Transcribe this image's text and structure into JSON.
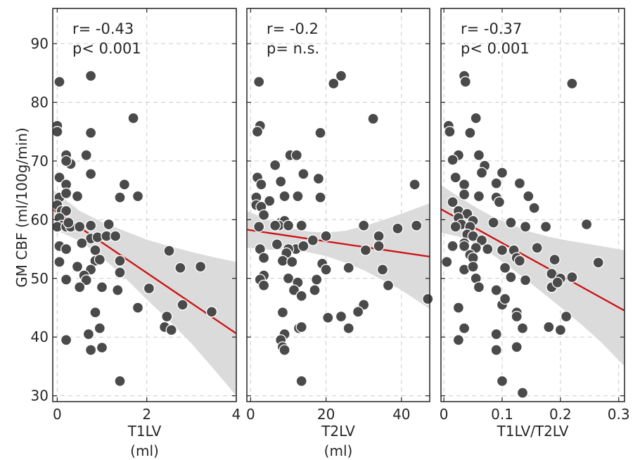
{
  "ylabel": "GM CBF (ml/100g/min)",
  "colors": {
    "points": "#4a4a4a",
    "point_stroke": "#ffffff",
    "fit_line": "#cc1111",
    "ci_band": "#d9d9d9",
    "grid": "#cccccc",
    "frame": "#222222"
  },
  "chart_data": [
    {
      "type": "scatter",
      "xlabel": "T1LV",
      "xunit": "(ml)",
      "annotation": [
        "r= -0.43",
        "p< 0.001"
      ],
      "xlim": [
        -0.1,
        4.0
      ],
      "ylim": [
        29,
        96
      ],
      "xticks": [
        0,
        2,
        4
      ],
      "xtick_labels": [
        "0",
        "2",
        "4"
      ],
      "yticks": [
        30,
        40,
        50,
        60,
        70,
        80,
        90
      ],
      "ytick_labels": [
        "30",
        "40",
        "50",
        "60",
        "70",
        "80",
        "90"
      ],
      "grid": true,
      "fit": {
        "x": [
          -0.1,
          4.0
        ],
        "y": [
          61.8,
          40.6
        ]
      },
      "ci": {
        "x": [
          -0.1,
          0.5,
          1.0,
          1.5,
          2.0,
          2.5,
          3.0,
          3.5,
          4.0
        ],
        "upper": [
          65.1,
          61.5,
          59.6,
          58.1,
          56.6,
          55.5,
          54.5,
          53.6,
          52.8
        ],
        "lower": [
          58.5,
          56.4,
          53.6,
          50.2,
          46.4,
          42.8,
          38.9,
          34.5,
          30.0
        ]
      },
      "points": [
        [
          0.05,
          83.5
        ],
        [
          0.75,
          84.5
        ],
        [
          1.7,
          77.3
        ],
        [
          0.0,
          76.0
        ],
        [
          0.0,
          75.0
        ],
        [
          0.75,
          74.8
        ],
        [
          0.2,
          71.0
        ],
        [
          0.65,
          71.0
        ],
        [
          0.3,
          69.5
        ],
        [
          0.2,
          70.0
        ],
        [
          0.05,
          67.2
        ],
        [
          0.75,
          67.8
        ],
        [
          0.2,
          66.0
        ],
        [
          1.5,
          66.0
        ],
        [
          0.05,
          63.8
        ],
        [
          0.2,
          64.5
        ],
        [
          0.45,
          64.0
        ],
        [
          1.4,
          63.8
        ],
        [
          1.8,
          64.0
        ],
        [
          0.0,
          62.5
        ],
        [
          0.1,
          61.5
        ],
        [
          0.2,
          61.5
        ],
        [
          0.05,
          60.3
        ],
        [
          0.1,
          59.0
        ],
        [
          0.0,
          58.8
        ],
        [
          0.2,
          58.8
        ],
        [
          0.3,
          58.8
        ],
        [
          0.25,
          59.5
        ],
        [
          0.5,
          58.8
        ],
        [
          0.75,
          59.0
        ],
        [
          1.15,
          59.2
        ],
        [
          0.75,
          56.8
        ],
        [
          0.9,
          57.0
        ],
        [
          1.1,
          57.2
        ],
        [
          1.3,
          57.2
        ],
        [
          0.05,
          55.5
        ],
        [
          0.2,
          55.0
        ],
        [
          0.55,
          56.0
        ],
        [
          0.85,
          54.8
        ],
        [
          0.85,
          53.0
        ],
        [
          0.95,
          53.2
        ],
        [
          1.4,
          53.0
        ],
        [
          2.5,
          54.7
        ],
        [
          0.05,
          52.8
        ],
        [
          0.45,
          52.0
        ],
        [
          0.75,
          51.5
        ],
        [
          1.4,
          51.0
        ],
        [
          0.6,
          50.5
        ],
        [
          0.65,
          49.7
        ],
        [
          0.2,
          49.8
        ],
        [
          0.5,
          48.5
        ],
        [
          1.0,
          48.5
        ],
        [
          1.35,
          48.0
        ],
        [
          2.05,
          48.3
        ],
        [
          2.75,
          51.8
        ],
        [
          3.2,
          52.0
        ],
        [
          1.8,
          45.0
        ],
        [
          2.45,
          43.5
        ],
        [
          2.8,
          45.5
        ],
        [
          3.45,
          44.3
        ],
        [
          0.85,
          44.2
        ],
        [
          2.4,
          41.7
        ],
        [
          2.55,
          41.2
        ],
        [
          0.95,
          41.5
        ],
        [
          0.7,
          40.5
        ],
        [
          0.2,
          39.5
        ],
        [
          0.75,
          37.8
        ],
        [
          1.0,
          38.2
        ],
        [
          1.4,
          32.5
        ]
      ]
    },
    {
      "type": "scatter",
      "xlabel": "T2LV",
      "xunit": "(ml)",
      "annotation": [
        "r= -0.2",
        "p= n.s."
      ],
      "xlim": [
        -1.0,
        47.5
      ],
      "ylim": [
        29,
        96
      ],
      "xticks": [
        0,
        20,
        40
      ],
      "xtick_labels": [
        "0",
        "20",
        "40"
      ],
      "yticks": [
        30,
        40,
        50,
        60,
        70,
        80,
        90
      ],
      "ytick_labels": [],
      "grid": true,
      "fit": {
        "x": [
          -1.0,
          47.5
        ],
        "y": [
          58.3,
          53.7
        ]
      },
      "ci": {
        "x": [
          -1.0,
          5,
          10,
          15,
          20,
          25,
          30,
          35,
          40,
          47.5
        ],
        "upper": [
          61.5,
          59.9,
          58.7,
          58.0,
          57.8,
          58.1,
          58.9,
          59.9,
          61.0,
          62.8
        ],
        "lower": [
          55.2,
          54.9,
          54.8,
          54.5,
          53.8,
          52.7,
          51.4,
          49.7,
          48.0,
          44.8
        ]
      },
      "points": [
        [
          2.2,
          83.5
        ],
        [
          24.0,
          84.5
        ],
        [
          22.0,
          83.2
        ],
        [
          2.5,
          76.0
        ],
        [
          1.8,
          75.0
        ],
        [
          18.5,
          74.8
        ],
        [
          32.5,
          77.2
        ],
        [
          10.5,
          71.0
        ],
        [
          12.2,
          71.0
        ],
        [
          6.5,
          69.3
        ],
        [
          8.0,
          66.5
        ],
        [
          18.0,
          67.0
        ],
        [
          14.0,
          67.8
        ],
        [
          1.8,
          67.2
        ],
        [
          2.8,
          66.0
        ],
        [
          43.5,
          66.0
        ],
        [
          1.5,
          63.8
        ],
        [
          5.0,
          63.2
        ],
        [
          9.0,
          64.0
        ],
        [
          12.5,
          64.0
        ],
        [
          18.5,
          63.8
        ],
        [
          1.5,
          62.5
        ],
        [
          2.8,
          62.2
        ],
        [
          3.5,
          60.8
        ],
        [
          8.0,
          59.5
        ],
        [
          9.0,
          59.8
        ],
        [
          7.5,
          59.0
        ],
        [
          6.5,
          59.0
        ],
        [
          10.0,
          59.0
        ],
        [
          13.5,
          59.0
        ],
        [
          2.2,
          58.8
        ],
        [
          20.0,
          57.2
        ],
        [
          30.0,
          59.0
        ],
        [
          39.0,
          58.5
        ],
        [
          44.0,
          59.0
        ],
        [
          16.5,
          56.5
        ],
        [
          34.0,
          57.2
        ],
        [
          2.5,
          55.0
        ],
        [
          7.0,
          55.8
        ],
        [
          12.0,
          55.0
        ],
        [
          10.0,
          55.0
        ],
        [
          9.5,
          54.3
        ],
        [
          14.0,
          55.5
        ],
        [
          3.5,
          53.5
        ],
        [
          8.5,
          53.0
        ],
        [
          11.0,
          52.8
        ],
        [
          19.0,
          52.5
        ],
        [
          20.0,
          51.5
        ],
        [
          26.0,
          51.8
        ],
        [
          30.5,
          54.8
        ],
        [
          34.0,
          55.5
        ],
        [
          35.0,
          51.5
        ],
        [
          3.5,
          50.5
        ],
        [
          2.5,
          49.8
        ],
        [
          10.0,
          50.0
        ],
        [
          12.5,
          49.3
        ],
        [
          17.5,
          49.8
        ],
        [
          3.5,
          48.8
        ],
        [
          11.5,
          48.0
        ],
        [
          17.0,
          48.0
        ],
        [
          13.5,
          47.0
        ],
        [
          36.5,
          48.8
        ],
        [
          47.0,
          46.5
        ],
        [
          30.0,
          45.5
        ],
        [
          28.5,
          44.3
        ],
        [
          24.0,
          43.5
        ],
        [
          20.5,
          43.3
        ],
        [
          8.5,
          44.2
        ],
        [
          12.8,
          41.5
        ],
        [
          13.5,
          41.7
        ],
        [
          26.0,
          41.5
        ],
        [
          9.0,
          40.5
        ],
        [
          8.0,
          39.5
        ],
        [
          8.5,
          38.3
        ],
        [
          9.0,
          37.8
        ],
        [
          13.5,
          32.5
        ]
      ]
    },
    {
      "type": "scatter",
      "xlabel": "T1LV/T2LV",
      "xunit": "",
      "annotation": [
        "r= -0.37",
        "p< 0.001"
      ],
      "xlim": [
        -0.005,
        0.31
      ],
      "ylim": [
        29,
        96
      ],
      "xticks": [
        0,
        0.1,
        0.2,
        0.3
      ],
      "xtick_labels": [
        "0",
        "0.1",
        "0.2",
        "0.3"
      ],
      "yticks": [
        30,
        40,
        50,
        60,
        70,
        80,
        90
      ],
      "ytick_labels": [],
      "grid": true,
      "fit": {
        "x": [
          -0.005,
          0.31
        ],
        "y": [
          61.8,
          44.5
        ]
      },
      "ci": {
        "x": [
          -0.005,
          0.03,
          0.06,
          0.09,
          0.12,
          0.15,
          0.18,
          0.21,
          0.24,
          0.27,
          0.31
        ],
        "upper": [
          65.9,
          63.6,
          61.8,
          60.2,
          59.0,
          57.9,
          57.1,
          56.5,
          56.0,
          55.5,
          54.8
        ],
        "lower": [
          57.8,
          57.0,
          55.6,
          53.6,
          51.4,
          49.1,
          46.7,
          44.3,
          41.8,
          39.1,
          35.0
        ]
      },
      "points": [
        [
          0.035,
          84.5
        ],
        [
          0.037,
          83.5
        ],
        [
          0.22,
          83.2
        ],
        [
          0.055,
          77.3
        ],
        [
          0.008,
          76.0
        ],
        [
          0.01,
          75.0
        ],
        [
          0.045,
          74.8
        ],
        [
          0.025,
          71.0
        ],
        [
          0.015,
          70.2
        ],
        [
          0.06,
          71.0
        ],
        [
          0.07,
          69.2
        ],
        [
          0.02,
          67.2
        ],
        [
          0.065,
          68.0
        ],
        [
          0.1,
          68.0
        ],
        [
          0.035,
          66.0
        ],
        [
          0.09,
          66.2
        ],
        [
          0.13,
          66.2
        ],
        [
          0.035,
          64.3
        ],
        [
          0.06,
          64.0
        ],
        [
          0.09,
          63.8
        ],
        [
          0.145,
          64.0
        ],
        [
          0.095,
          63.0
        ],
        [
          0.155,
          62.0
        ],
        [
          0.015,
          63.0
        ],
        [
          0.025,
          61.5
        ],
        [
          0.04,
          61.0
        ],
        [
          0.025,
          60.3
        ],
        [
          0.05,
          59.8
        ],
        [
          0.03,
          59.2
        ],
        [
          0.02,
          58.8
        ],
        [
          0.045,
          58.8
        ],
        [
          0.085,
          59.5
        ],
        [
          0.115,
          59.5
        ],
        [
          0.14,
          58.8
        ],
        [
          0.175,
          58.8
        ],
        [
          0.245,
          59.2
        ],
        [
          0.04,
          57.5
        ],
        [
          0.05,
          57.2
        ],
        [
          0.035,
          56.0
        ],
        [
          0.065,
          56.5
        ],
        [
          0.035,
          55.5
        ],
        [
          0.055,
          55.2
        ],
        [
          0.075,
          55.0
        ],
        [
          0.1,
          54.8
        ],
        [
          0.12,
          54.8
        ],
        [
          0.16,
          55.2
        ],
        [
          0.015,
          55.5
        ],
        [
          0.045,
          54.0
        ],
        [
          0.05,
          53.5
        ],
        [
          0.125,
          53.5
        ],
        [
          0.13,
          53.0
        ],
        [
          0.19,
          53.2
        ],
        [
          0.005,
          52.8
        ],
        [
          0.035,
          51.5
        ],
        [
          0.05,
          52.0
        ],
        [
          0.105,
          51.8
        ],
        [
          0.265,
          52.7
        ],
        [
          0.055,
          50.0
        ],
        [
          0.115,
          50.2
        ],
        [
          0.14,
          49.7
        ],
        [
          0.185,
          50.8
        ],
        [
          0.2,
          50.0
        ],
        [
          0.22,
          50.2
        ],
        [
          0.06,
          48.5
        ],
        [
          0.185,
          48.5
        ],
        [
          0.195,
          49.3
        ],
        [
          0.09,
          48.0
        ],
        [
          0.1,
          45.5
        ],
        [
          0.105,
          46.5
        ],
        [
          0.025,
          45.0
        ],
        [
          0.125,
          44.2
        ],
        [
          0.125,
          43.5
        ],
        [
          0.21,
          43.5
        ],
        [
          0.035,
          41.5
        ],
        [
          0.18,
          41.7
        ],
        [
          0.2,
          41.2
        ],
        [
          0.135,
          41.5
        ],
        [
          0.09,
          40.5
        ],
        [
          0.025,
          39.5
        ],
        [
          0.09,
          37.8
        ],
        [
          0.125,
          38.3
        ],
        [
          0.1,
          32.5
        ],
        [
          0.135,
          30.5
        ]
      ]
    }
  ]
}
